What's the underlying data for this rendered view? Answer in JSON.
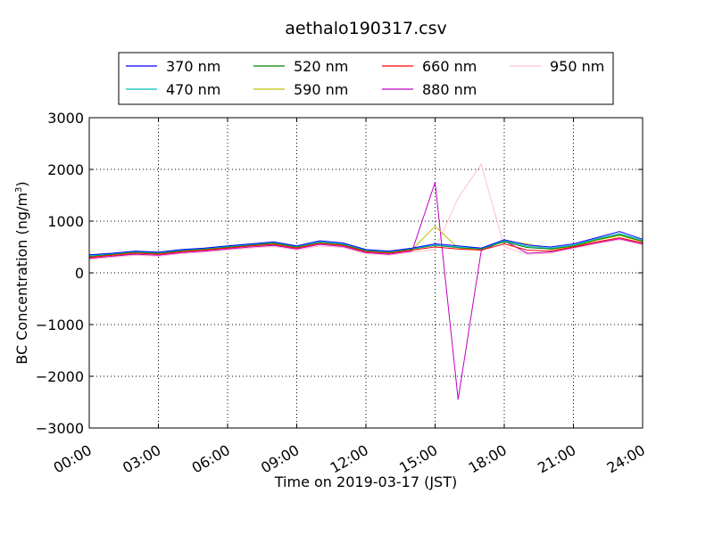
{
  "chart_data": {
    "type": "line",
    "title": "aethalo190317.csv",
    "xlabel": "Time on 2019-03-17 (JST)",
    "ylabel": "BC Concentration (ng/m",
    "ylabel_sup": "3",
    "ylabel_close": ")",
    "xlim": [
      "00:00",
      "24:00"
    ],
    "ylim": [
      -3000,
      3000
    ],
    "x_ticks": [
      "00:00",
      "03:00",
      "06:00",
      "09:00",
      "12:00",
      "15:00",
      "18:00",
      "21:00",
      "24:00"
    ],
    "y_ticks": [
      "3000",
      "2000",
      "1000",
      "0",
      "−1000",
      "−2000",
      "−3000"
    ],
    "y_tick_values": [
      3000,
      2000,
      1000,
      0,
      -1000,
      -2000,
      -3000
    ],
    "grid": true,
    "legend_position": "top",
    "series": [
      {
        "name": "370 nm",
        "color": "#0000ff",
        "x": [
          "00:00",
          "01:00",
          "02:00",
          "03:00",
          "04:00",
          "05:00",
          "06:00",
          "07:00",
          "08:00",
          "09:00",
          "10:00",
          "11:00",
          "12:00",
          "13:00",
          "14:00",
          "15:00",
          "16:00",
          "17:00",
          "18:00",
          "19:00",
          "20:00",
          "21:00",
          "22:00",
          "23:00",
          "24:00"
        ],
        "values": [
          350,
          380,
          420,
          400,
          450,
          480,
          520,
          560,
          600,
          520,
          620,
          580,
          450,
          420,
          480,
          560,
          520,
          480,
          640,
          540,
          500,
          560,
          680,
          800,
          650
        ]
      },
      {
        "name": "470 nm",
        "color": "#00bfbf",
        "x": [
          "00:00",
          "01:00",
          "02:00",
          "03:00",
          "04:00",
          "05:00",
          "06:00",
          "07:00",
          "08:00",
          "09:00",
          "10:00",
          "11:00",
          "12:00",
          "13:00",
          "14:00",
          "15:00",
          "16:00",
          "17:00",
          "18:00",
          "19:00",
          "20:00",
          "21:00",
          "22:00",
          "23:00",
          "24:00"
        ],
        "values": [
          330,
          370,
          410,
          390,
          440,
          470,
          510,
          550,
          590,
          510,
          600,
          560,
          440,
          410,
          470,
          540,
          500,
          470,
          620,
          510,
          480,
          540,
          660,
          760,
          630
        ]
      },
      {
        "name": "520 nm",
        "color": "#008000",
        "x": [
          "00:00",
          "01:00",
          "02:00",
          "03:00",
          "04:00",
          "05:00",
          "06:00",
          "07:00",
          "08:00",
          "09:00",
          "10:00",
          "11:00",
          "12:00",
          "13:00",
          "14:00",
          "15:00",
          "16:00",
          "17:00",
          "18:00",
          "19:00",
          "20:00",
          "21:00",
          "22:00",
          "23:00",
          "24:00"
        ],
        "values": [
          320,
          360,
          400,
          380,
          430,
          460,
          500,
          540,
          570,
          500,
          590,
          550,
          430,
          400,
          460,
          530,
          490,
          460,
          600,
          490,
          460,
          520,
          640,
          740,
          610
        ]
      },
      {
        "name": "590 nm",
        "color": "#bfbf00",
        "x": [
          "00:00",
          "01:00",
          "02:00",
          "03:00",
          "04:00",
          "05:00",
          "06:00",
          "07:00",
          "08:00",
          "09:00",
          "10:00",
          "11:00",
          "12:00",
          "13:00",
          "14:00",
          "15:00",
          "16:00",
          "17:00",
          "18:00",
          "19:00",
          "20:00",
          "21:00",
          "22:00",
          "23:00",
          "24:00"
        ],
        "values": [
          310,
          350,
          390,
          370,
          420,
          450,
          490,
          530,
          560,
          490,
          580,
          540,
          420,
          390,
          450,
          900,
          480,
          450,
          620,
          560,
          450,
          510,
          630,
          720,
          600
        ]
      },
      {
        "name": "660 nm",
        "color": "#ff0000",
        "x": [
          "00:00",
          "01:00",
          "02:00",
          "03:00",
          "04:00",
          "05:00",
          "06:00",
          "07:00",
          "08:00",
          "09:00",
          "10:00",
          "11:00",
          "12:00",
          "13:00",
          "14:00",
          "15:00",
          "16:00",
          "17:00",
          "18:00",
          "19:00",
          "20:00",
          "21:00",
          "22:00",
          "23:00",
          "24:00"
        ],
        "values": [
          300,
          340,
          380,
          360,
          410,
          440,
          480,
          520,
          550,
          480,
          570,
          530,
          410,
          380,
          440,
          500,
          460,
          440,
          560,
          440,
          420,
          500,
          600,
          680,
          580
        ]
      },
      {
        "name": "880 nm",
        "color": "#bf00bf",
        "x": [
          "00:00",
          "01:00",
          "02:00",
          "03:00",
          "04:00",
          "05:00",
          "06:00",
          "07:00",
          "08:00",
          "09:00",
          "10:00",
          "11:00",
          "12:00",
          "13:00",
          "14:00",
          "15:00",
          "16:00",
          "17:00",
          "18:00",
          "19:00",
          "20:00",
          "21:00",
          "22:00",
          "23:00",
          "24:00"
        ],
        "values": [
          280,
          320,
          360,
          340,
          390,
          420,
          460,
          500,
          530,
          460,
          550,
          510,
          390,
          360,
          420,
          1750,
          -2450,
          430,
          620,
          380,
          400,
          490,
          580,
          660,
          560
        ]
      },
      {
        "name": "950 nm",
        "color": "#ffc0cb",
        "x": [
          "00:00",
          "01:00",
          "02:00",
          "03:00",
          "04:00",
          "05:00",
          "06:00",
          "07:00",
          "08:00",
          "09:00",
          "10:00",
          "11:00",
          "12:00",
          "13:00",
          "14:00",
          "15:00",
          "16:00",
          "17:00",
          "18:00",
          "19:00",
          "20:00",
          "21:00",
          "22:00",
          "23:00",
          "24:00"
        ],
        "values": [
          260,
          300,
          340,
          320,
          370,
          400,
          440,
          480,
          510,
          440,
          520,
          490,
          370,
          340,
          400,
          450,
          1450,
          2100,
          500,
          360,
          380,
          470,
          560,
          640,
          540
        ]
      }
    ]
  }
}
